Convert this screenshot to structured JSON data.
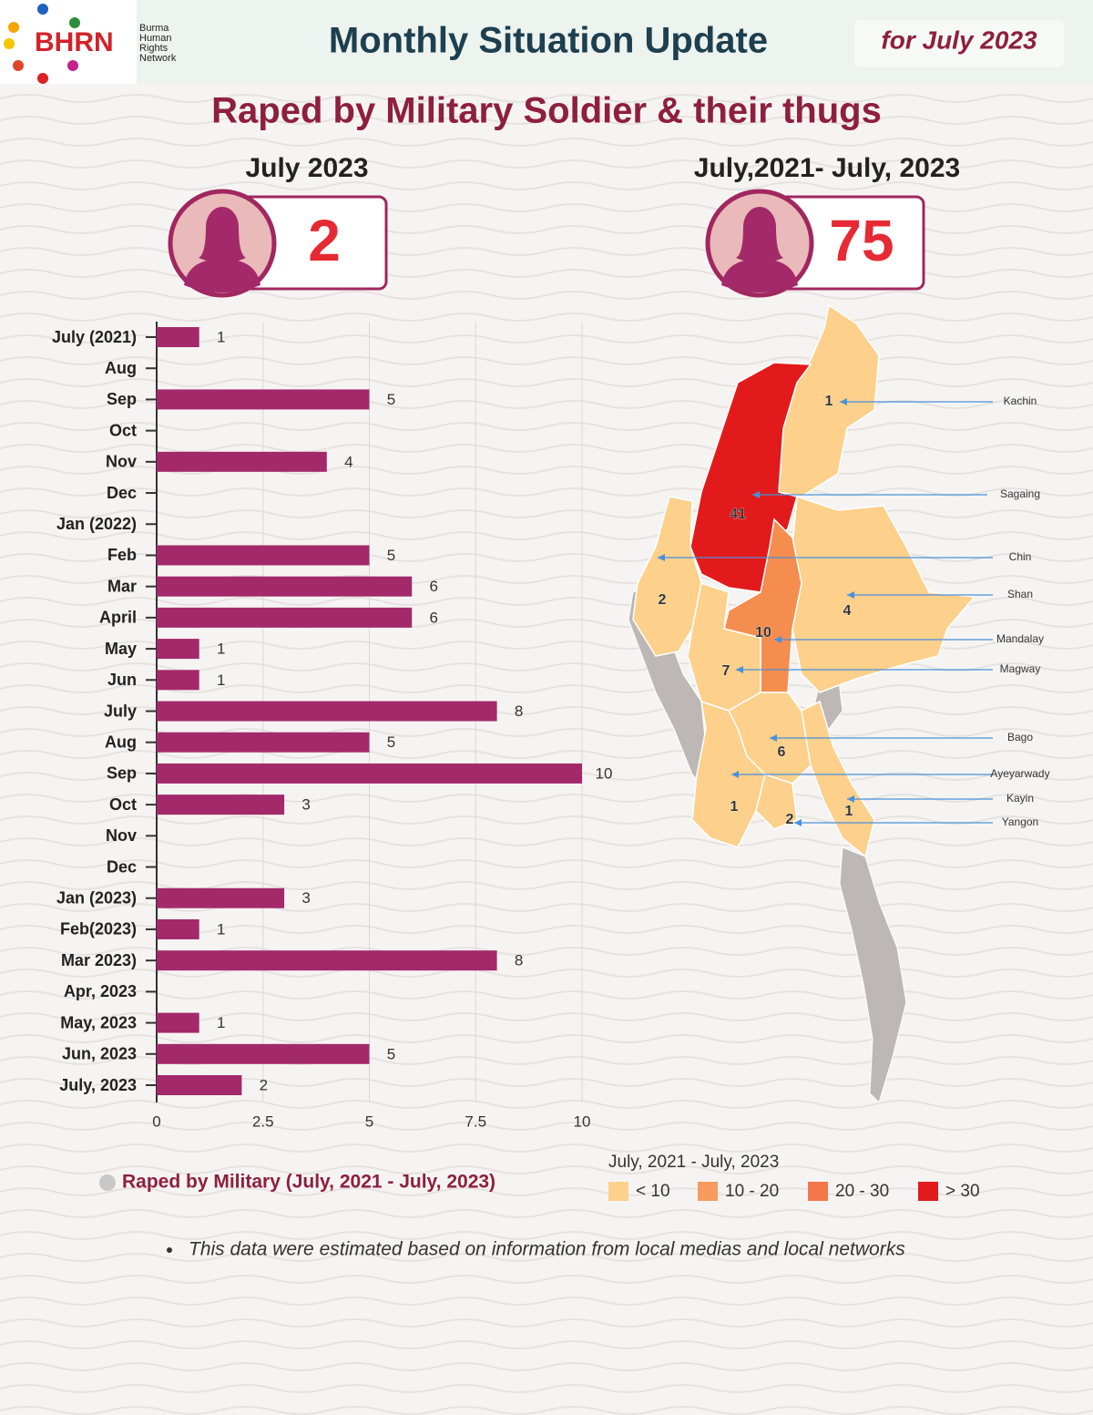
{
  "header": {
    "logo": "BHRN",
    "org": [
      "Burma",
      "Human",
      "Rights",
      "Network"
    ],
    "title": "Monthly Situation Update",
    "period": "for July 2023"
  },
  "subtitle": "Raped by Military Soldier & their thugs",
  "stats": [
    {
      "label": "July 2023",
      "value": 2
    },
    {
      "label": "July,2021- July, 2023",
      "value": 75
    }
  ],
  "chart_data": [
    {
      "type": "bar",
      "orientation": "horizontal",
      "color": "#a3296b",
      "categories": [
        "July (2021)",
        "Aug",
        "Sep",
        "Oct",
        "Nov",
        "Dec",
        "Jan (2022)",
        "Feb",
        "Mar",
        "April",
        "May",
        "Jun",
        "July",
        "Aug",
        "Sep",
        "Oct",
        "Nov",
        "Dec",
        "Jan (2023)",
        "Feb(2023)",
        "Mar 2023)",
        "Apr, 2023",
        "May, 2023",
        "Jun, 2023",
        "July, 2023"
      ],
      "values": [
        1,
        null,
        5,
        null,
        4,
        null,
        null,
        5,
        6,
        6,
        1,
        1,
        8,
        5,
        10,
        3,
        null,
        null,
        3,
        1,
        8,
        null,
        1,
        5,
        2
      ],
      "xlim": [
        0,
        10
      ],
      "xticks": [
        0,
        2.5,
        5,
        7.5,
        10
      ],
      "grid": true
    },
    {
      "type": "map",
      "title": "July, 2021 - July, 2023",
      "regions": [
        {
          "name": "Kachin",
          "value": 1,
          "color": "#fdd08c"
        },
        {
          "name": "Sagaing",
          "value": 41,
          "color": "#e31a1c"
        },
        {
          "name": "Chin",
          "value": 2,
          "color": "#fdd08c"
        },
        {
          "name": "Shan",
          "value": 4,
          "color": "#fdd08c"
        },
        {
          "name": "Mandalay",
          "value": 10,
          "color": "#f58d4f"
        },
        {
          "name": "Magway",
          "value": 7,
          "color": "#fdd08c"
        },
        {
          "name": "Bago",
          "value": 6,
          "color": "#fdd08c"
        },
        {
          "name": "Ayeyarwady",
          "value": 1,
          "color": "#fdd08c"
        },
        {
          "name": "Kayin",
          "value": 1,
          "color": "#fdd08c"
        },
        {
          "name": "Yangon",
          "value": 2,
          "color": "#fdd08c"
        }
      ],
      "legend": [
        {
          "label": "< 10",
          "color": "#fdd08c"
        },
        {
          "label": "10 - 20",
          "color": "#f99b5e"
        },
        {
          "label": "20 - 30",
          "color": "#f4774a"
        },
        {
          "label": "> 30",
          "color": "#e31a1c"
        }
      ]
    }
  ],
  "legend_note": "Raped by Military (July, 2021 - July, 2023)",
  "footnote": "This data were estimated based on information from local medias and local networks"
}
